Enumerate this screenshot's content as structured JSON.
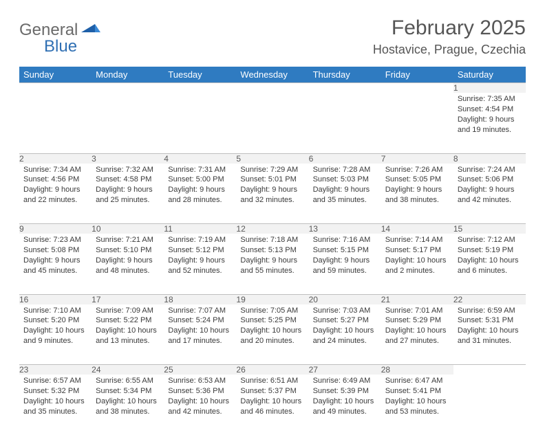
{
  "logo": {
    "text1": "General",
    "text2": "Blue"
  },
  "title": "February 2025",
  "location": "Hostavice, Prague, Czechia",
  "colors": {
    "header_bg": "#2f7bc1",
    "header_text": "#ffffff",
    "daynum_bg": "#f2f2f2",
    "daynum_border": "#bfbfbf",
    "daynum_text": "#595959",
    "body_text": "#3a3a3a",
    "title_text": "#555555",
    "logo_gray": "#6a6a6a",
    "logo_blue": "#2f6fb3"
  },
  "weekdays": [
    "Sunday",
    "Monday",
    "Tuesday",
    "Wednesday",
    "Thursday",
    "Friday",
    "Saturday"
  ],
  "weeks": [
    [
      null,
      null,
      null,
      null,
      null,
      null,
      {
        "n": "1",
        "sr": "7:35 AM",
        "ss": "4:54 PM",
        "dl": "9 hours and 19 minutes."
      }
    ],
    [
      {
        "n": "2",
        "sr": "7:34 AM",
        "ss": "4:56 PM",
        "dl": "9 hours and 22 minutes."
      },
      {
        "n": "3",
        "sr": "7:32 AM",
        "ss": "4:58 PM",
        "dl": "9 hours and 25 minutes."
      },
      {
        "n": "4",
        "sr": "7:31 AM",
        "ss": "5:00 PM",
        "dl": "9 hours and 28 minutes."
      },
      {
        "n": "5",
        "sr": "7:29 AM",
        "ss": "5:01 PM",
        "dl": "9 hours and 32 minutes."
      },
      {
        "n": "6",
        "sr": "7:28 AM",
        "ss": "5:03 PM",
        "dl": "9 hours and 35 minutes."
      },
      {
        "n": "7",
        "sr": "7:26 AM",
        "ss": "5:05 PM",
        "dl": "9 hours and 38 minutes."
      },
      {
        "n": "8",
        "sr": "7:24 AM",
        "ss": "5:06 PM",
        "dl": "9 hours and 42 minutes."
      }
    ],
    [
      {
        "n": "9",
        "sr": "7:23 AM",
        "ss": "5:08 PM",
        "dl": "9 hours and 45 minutes."
      },
      {
        "n": "10",
        "sr": "7:21 AM",
        "ss": "5:10 PM",
        "dl": "9 hours and 48 minutes."
      },
      {
        "n": "11",
        "sr": "7:19 AM",
        "ss": "5:12 PM",
        "dl": "9 hours and 52 minutes."
      },
      {
        "n": "12",
        "sr": "7:18 AM",
        "ss": "5:13 PM",
        "dl": "9 hours and 55 minutes."
      },
      {
        "n": "13",
        "sr": "7:16 AM",
        "ss": "5:15 PM",
        "dl": "9 hours and 59 minutes."
      },
      {
        "n": "14",
        "sr": "7:14 AM",
        "ss": "5:17 PM",
        "dl": "10 hours and 2 minutes."
      },
      {
        "n": "15",
        "sr": "7:12 AM",
        "ss": "5:19 PM",
        "dl": "10 hours and 6 minutes."
      }
    ],
    [
      {
        "n": "16",
        "sr": "7:10 AM",
        "ss": "5:20 PM",
        "dl": "10 hours and 9 minutes."
      },
      {
        "n": "17",
        "sr": "7:09 AM",
        "ss": "5:22 PM",
        "dl": "10 hours and 13 minutes."
      },
      {
        "n": "18",
        "sr": "7:07 AM",
        "ss": "5:24 PM",
        "dl": "10 hours and 17 minutes."
      },
      {
        "n": "19",
        "sr": "7:05 AM",
        "ss": "5:25 PM",
        "dl": "10 hours and 20 minutes."
      },
      {
        "n": "20",
        "sr": "7:03 AM",
        "ss": "5:27 PM",
        "dl": "10 hours and 24 minutes."
      },
      {
        "n": "21",
        "sr": "7:01 AM",
        "ss": "5:29 PM",
        "dl": "10 hours and 27 minutes."
      },
      {
        "n": "22",
        "sr": "6:59 AM",
        "ss": "5:31 PM",
        "dl": "10 hours and 31 minutes."
      }
    ],
    [
      {
        "n": "23",
        "sr": "6:57 AM",
        "ss": "5:32 PM",
        "dl": "10 hours and 35 minutes."
      },
      {
        "n": "24",
        "sr": "6:55 AM",
        "ss": "5:34 PM",
        "dl": "10 hours and 38 minutes."
      },
      {
        "n": "25",
        "sr": "6:53 AM",
        "ss": "5:36 PM",
        "dl": "10 hours and 42 minutes."
      },
      {
        "n": "26",
        "sr": "6:51 AM",
        "ss": "5:37 PM",
        "dl": "10 hours and 46 minutes."
      },
      {
        "n": "27",
        "sr": "6:49 AM",
        "ss": "5:39 PM",
        "dl": "10 hours and 49 minutes."
      },
      {
        "n": "28",
        "sr": "6:47 AM",
        "ss": "5:41 PM",
        "dl": "10 hours and 53 minutes."
      },
      null
    ]
  ],
  "labels": {
    "sunrise": "Sunrise: ",
    "sunset": "Sunset: ",
    "daylight": "Daylight: "
  }
}
